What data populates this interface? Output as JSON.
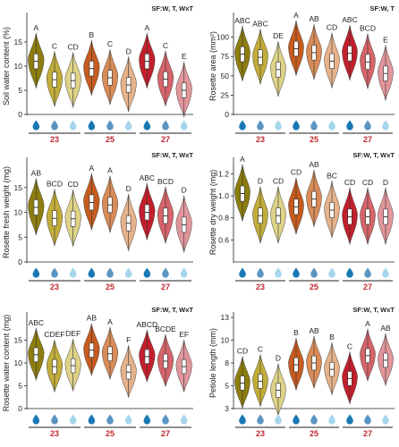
{
  "legend": {
    "water_levels": [
      "high",
      "medium",
      "low"
    ],
    "water_colors": [
      "#1a78b4",
      "#5b95c2",
      "#a6d6ec"
    ]
  },
  "temperatures": [
    {
      "label": "23",
      "colors": [
        "#8c7d0f",
        "#c2ad3a",
        "#ded287"
      ]
    },
    {
      "label": "25",
      "colors": [
        "#c65b1e",
        "#d98c58",
        "#e6b28a"
      ]
    },
    {
      "label": "27",
      "colors": [
        "#c21f2c",
        "#d6646a",
        "#e2969a"
      ]
    }
  ],
  "chart_data": [
    {
      "type": "violin",
      "title": "SF:W, T, WxT",
      "ylabel": "Soil water content (%)",
      "ylim": [
        0,
        20
      ],
      "yticks": [
        0,
        5,
        10,
        15
      ],
      "values": [
        11.0,
        7.2,
        7.0,
        9.5,
        7.6,
        6.1,
        11.0,
        7.3,
        5.0
      ],
      "letters": [
        "A",
        "C",
        "CD",
        "B",
        "C",
        "D",
        "A",
        "C",
        "E"
      ]
    },
    {
      "type": "violin",
      "title": "SF:W, T",
      "ylabel": "Rosette area (mm²)",
      "ylim": [
        0,
        125
      ],
      "yticks": [
        0,
        25,
        50,
        75,
        100
      ],
      "values": [
        78,
        74,
        58,
        85,
        80,
        69,
        79,
        68,
        53
      ],
      "letters": [
        "ABC",
        "ABC",
        "DE",
        "A",
        "AB",
        "CD",
        "ABC",
        "BCD",
        "E"
      ]
    },
    {
      "type": "violin",
      "title": "SF:W, T, WxT",
      "ylabel": "Rosette fresh weight (mg)",
      "ylim": [
        0,
        20
      ],
      "yticks": [
        0,
        5,
        10,
        15
      ],
      "values": [
        11.0,
        8.8,
        8.7,
        12.0,
        11.5,
        7.8,
        10.0,
        9.3,
        7.5
      ],
      "letters": [
        "AB",
        "BCD",
        "CD",
        "A",
        "A",
        "D",
        "ABC",
        "BCD",
        "D"
      ]
    },
    {
      "type": "violin",
      "title": "SF:W, T, WxT",
      "ylabel": "Rosette dry weight (mg)",
      "ylim": [
        0.4,
        1.3
      ],
      "yticks": [
        0.6,
        0.8,
        1.0,
        1.2
      ],
      "values": [
        1.02,
        0.82,
        0.82,
        0.9,
        0.97,
        0.87,
        0.81,
        0.81,
        0.81
      ],
      "letters": [
        "A",
        "D",
        "CD",
        "CD",
        "AB",
        "BC",
        "CD",
        "CD",
        "D"
      ]
    },
    {
      "type": "violin",
      "title": "SF:W, T, WxT",
      "ylabel": "Rosette water content (mg)",
      "ylim": [
        0,
        20
      ],
      "yticks": [
        0,
        5,
        10,
        15
      ],
      "values": [
        11.8,
        9.2,
        9.4,
        12.8,
        12.0,
        8.0,
        11.4,
        10.4,
        9.2
      ],
      "letters": [
        "ABC",
        "CDEF",
        "DEF",
        "AB",
        "A",
        "F",
        "ABCD",
        "BCDE",
        "EF"
      ]
    },
    {
      "type": "violin",
      "title": "SF:W, T, WxT",
      "ylabel": "Petiole length (mm)",
      "ylim": [
        2.5,
        12.5
      ],
      "yticks": [
        2.5,
        5.0,
        7.5,
        10.0,
        12.5
      ],
      "values": [
        5.3,
        5.5,
        4.5,
        7.3,
        7.5,
        6.8,
        5.8,
        8.3,
        7.8
      ],
      "letters": [
        "CD",
        "C",
        "D",
        "B",
        "AB",
        "B",
        "C",
        "A",
        "AB"
      ]
    }
  ]
}
